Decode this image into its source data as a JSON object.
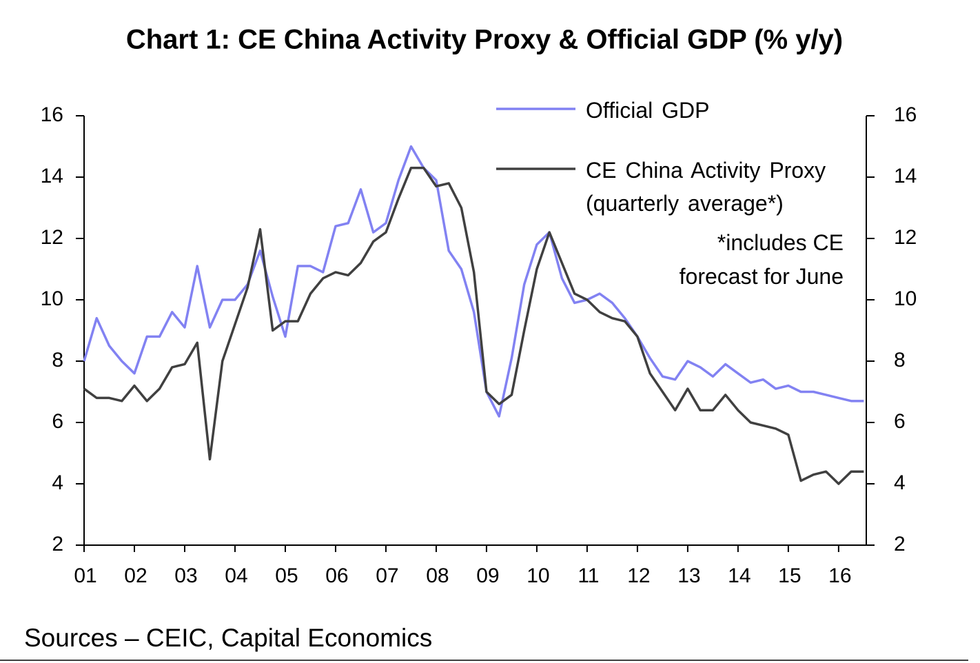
{
  "chart_data": {
    "type": "line",
    "title": "Chart 1: CE China Activity Proxy & Official GDP (% y/y)",
    "x": [
      2001,
      2001.25,
      2001.5,
      2001.75,
      2002,
      2002.25,
      2002.5,
      2002.75,
      2003,
      2003.25,
      2003.5,
      2003.75,
      2004,
      2004.25,
      2004.5,
      2004.75,
      2005,
      2005.25,
      2005.5,
      2005.75,
      2006,
      2006.25,
      2006.5,
      2006.75,
      2007,
      2007.25,
      2007.5,
      2007.75,
      2008,
      2008.25,
      2008.5,
      2008.75,
      2009,
      2009.25,
      2009.5,
      2009.75,
      2010,
      2010.25,
      2010.5,
      2010.75,
      2011,
      2011.25,
      2011.5,
      2011.75,
      2012,
      2012.25,
      2012.5,
      2012.75,
      2013,
      2013.25,
      2013.5,
      2013.75,
      2014,
      2014.25,
      2014.5,
      2014.75,
      2015,
      2015.25,
      2015.5,
      2015.75,
      2016,
      2016.25,
      2016.5
    ],
    "series": [
      {
        "name": "Official GDP",
        "color": "#8282f2",
        "values": [
          8.0,
          9.4,
          8.5,
          8.0,
          7.6,
          8.8,
          8.8,
          9.6,
          9.1,
          11.1,
          9.1,
          10.0,
          10.0,
          10.5,
          11.6,
          10.1,
          8.8,
          11.1,
          11.1,
          10.9,
          12.4,
          12.5,
          13.6,
          12.2,
          12.5,
          13.9,
          15.0,
          14.3,
          13.9,
          11.6,
          11.0,
          9.6,
          7.0,
          6.2,
          8.1,
          10.5,
          11.8,
          12.2,
          10.7,
          9.9,
          10.0,
          10.2,
          9.9,
          9.4,
          8.8,
          8.1,
          7.5,
          7.4,
          8.0,
          7.8,
          7.5,
          7.9,
          7.6,
          7.3,
          7.4,
          7.1,
          7.2,
          7.0,
          7.0,
          6.9,
          6.8,
          6.7,
          6.7
        ]
      },
      {
        "name": "CE China Activity Proxy (quarterly average*)",
        "color": "#404040",
        "values": [
          7.1,
          6.8,
          6.8,
          6.7,
          7.2,
          6.7,
          7.1,
          7.8,
          7.9,
          8.6,
          4.8,
          8.0,
          9.2,
          10.4,
          12.3,
          9.0,
          9.3,
          9.3,
          10.2,
          10.7,
          10.9,
          10.8,
          11.2,
          11.9,
          12.2,
          13.3,
          14.3,
          14.3,
          13.7,
          13.8,
          13.0,
          10.9,
          7.0,
          6.6,
          6.9,
          9.0,
          11.0,
          12.2,
          11.2,
          10.2,
          10.0,
          9.6,
          9.4,
          9.3,
          8.8,
          7.6,
          7.0,
          6.4,
          7.1,
          6.4,
          6.4,
          6.9,
          6.4,
          6.0,
          5.9,
          5.8,
          5.6,
          4.1,
          4.3,
          4.4,
          4.0,
          4.4,
          4.4
        ]
      }
    ],
    "annotation": "*includes CE forecast for June",
    "source": "Sources – CEIC, Capital Economics",
    "xlim": [
      2001,
      2016.55
    ],
    "xticks": [
      {
        "value": 2001,
        "label": "01"
      },
      {
        "value": 2002,
        "label": "02"
      },
      {
        "value": 2003,
        "label": "03"
      },
      {
        "value": 2004,
        "label": "04"
      },
      {
        "value": 2005,
        "label": "05"
      },
      {
        "value": 2006,
        "label": "06"
      },
      {
        "value": 2007,
        "label": "07"
      },
      {
        "value": 2008,
        "label": "08"
      },
      {
        "value": 2009,
        "label": "09"
      },
      {
        "value": 2010,
        "label": "10"
      },
      {
        "value": 2011,
        "label": "11"
      },
      {
        "value": 2012,
        "label": "12"
      },
      {
        "value": 2013,
        "label": "13"
      },
      {
        "value": 2014,
        "label": "14"
      },
      {
        "value": 2015,
        "label": "15"
      },
      {
        "value": 2016,
        "label": "16"
      }
    ],
    "ylim": [
      2,
      16
    ],
    "yticks": [
      2,
      4,
      6,
      8,
      10,
      12,
      14,
      16
    ],
    "y2lim": [
      2,
      16
    ],
    "y2ticks": [
      2,
      4,
      6,
      8,
      10,
      12,
      14,
      16
    ],
    "grid": false
  }
}
